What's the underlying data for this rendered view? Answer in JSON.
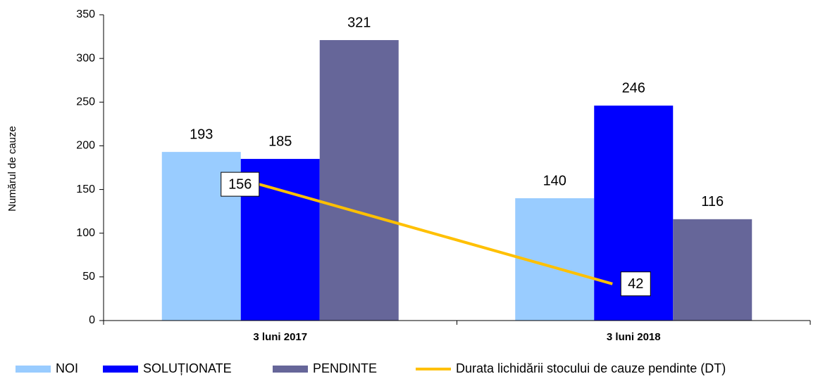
{
  "chart_data": {
    "type": "bar",
    "y_label": "Numărul de cauze",
    "categories": [
      "3 luni 2017",
      "3 luni 2018"
    ],
    "series": [
      {
        "name": "NOI",
        "color": "#99ccff",
        "values": [
          193,
          140
        ]
      },
      {
        "name": "SOLUȚIONATE",
        "color": "#0000ff",
        "values": [
          185,
          246
        ]
      },
      {
        "name": "PENDINTE",
        "color": "#666699",
        "values": [
          321,
          116
        ]
      },
      {
        "name": "Durata lichidării stocului de cauze pendinte (DT)",
        "color": "#ffc000",
        "type": "line",
        "values": [
          156,
          42
        ]
      }
    ],
    "ylim": [
      0,
      350
    ],
    "yticks": [
      0,
      50,
      100,
      150,
      200,
      250,
      300,
      350
    ],
    "grid": false
  }
}
